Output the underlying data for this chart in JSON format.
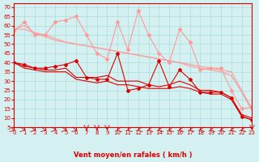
{
  "xlabel": "Vent moyen/en rafales ( km/h )",
  "ylabel": "",
  "bg_color": "#d4f0f0",
  "grid_color": "#aadddd",
  "line_color_dark": "#dd0000",
  "line_color_light": "#ff9999",
  "ylim": [
    5,
    72
  ],
  "xlim": [
    0,
    23
  ],
  "yticks": [
    5,
    10,
    15,
    20,
    25,
    30,
    35,
    40,
    45,
    50,
    55,
    60,
    65,
    70
  ],
  "xticks": [
    0,
    1,
    2,
    3,
    4,
    5,
    6,
    7,
    8,
    9,
    10,
    11,
    12,
    13,
    14,
    15,
    16,
    17,
    18,
    19,
    20,
    21,
    22,
    23
  ],
  "line1_y": [
    40,
    39,
    37,
    37,
    38,
    39,
    41,
    32,
    31,
    31,
    45,
    25,
    26,
    28,
    41,
    27,
    36,
    31,
    24,
    24,
    24,
    21,
    11,
    9
  ],
  "line2_y": [
    40,
    38,
    37,
    36,
    36,
    37,
    32,
    32,
    32,
    33,
    30,
    30,
    30,
    28,
    27,
    28,
    30,
    28,
    25,
    25,
    24,
    21,
    12,
    10
  ],
  "line3_y": [
    40,
    37,
    36,
    35,
    35,
    35,
    31,
    30,
    29,
    30,
    28,
    28,
    27,
    26,
    26,
    26,
    27,
    26,
    24,
    23,
    23,
    20,
    11,
    9
  ],
  "line4_y": [
    57,
    62,
    55,
    55,
    62,
    63,
    65,
    55,
    45,
    42,
    62,
    47,
    68,
    55,
    45,
    40,
    58,
    51,
    36,
    37,
    37,
    25,
    15,
    16
  ],
  "line5_y": [
    58,
    60,
    56,
    54,
    52,
    51,
    50,
    49,
    48,
    47,
    46,
    45,
    44,
    43,
    42,
    41,
    40,
    39,
    38,
    37,
    36,
    35,
    25,
    15
  ],
  "line6_y": [
    58,
    58,
    56,
    55,
    53,
    51,
    50,
    49,
    48,
    47,
    46,
    45,
    44,
    43,
    42,
    41,
    40,
    38,
    37,
    36,
    35,
    33,
    24,
    14
  ],
  "arrows": [
    45,
    45,
    45,
    45,
    45,
    45,
    45,
    0,
    0,
    0,
    315,
    315,
    315,
    315,
    315,
    315,
    315,
    315,
    315,
    315,
    315,
    315,
    315,
    0
  ]
}
